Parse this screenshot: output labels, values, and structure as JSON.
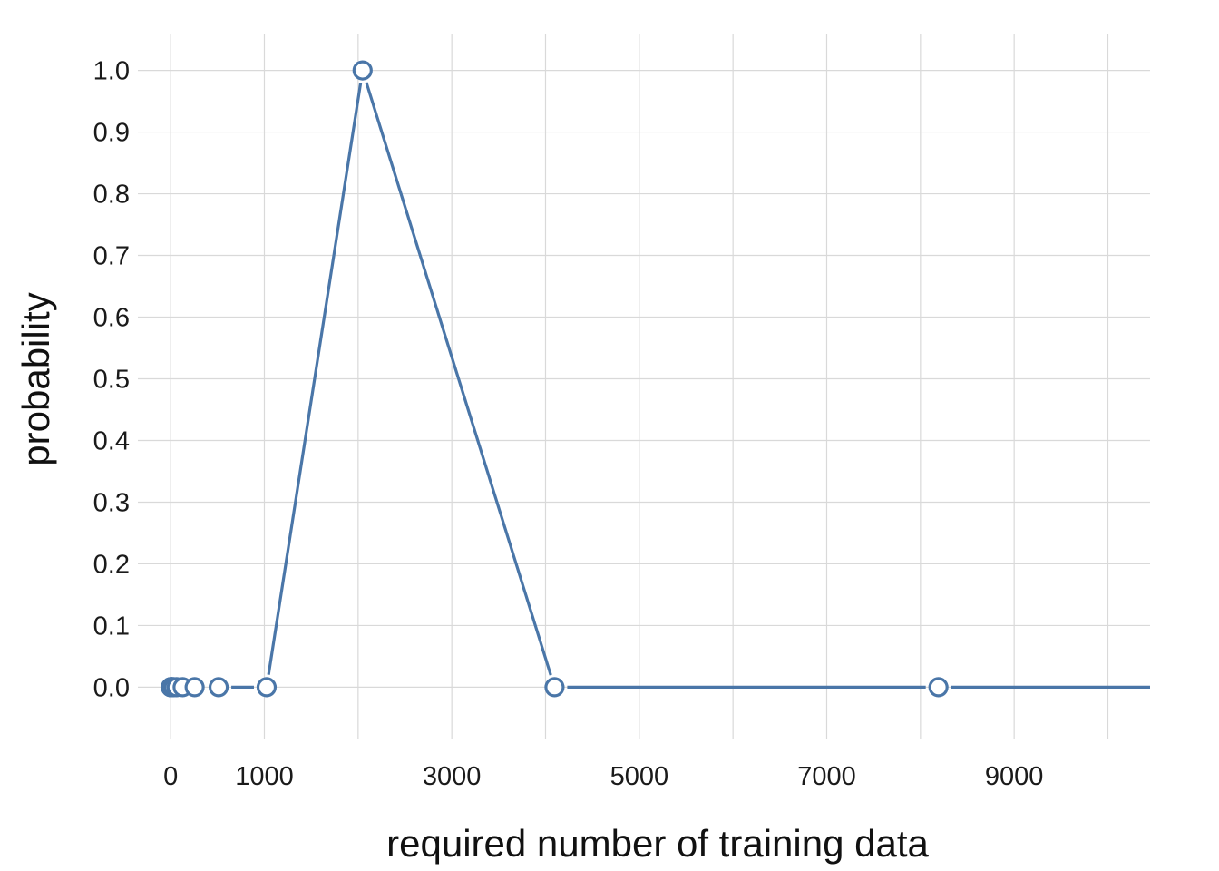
{
  "chart_data": {
    "type": "line",
    "xlabel": "required number of training data",
    "ylabel": "probability",
    "xlim": [
      -350,
      10450
    ],
    "ylim": [
      -0.07,
      1.07
    ],
    "x_ticks": [
      0,
      1000,
      3000,
      5000,
      7000,
      9000
    ],
    "x_tick_labels": [
      "0",
      "1000",
      "3000",
      "5000",
      "7000",
      "9000"
    ],
    "x_minor_grid": [
      2000,
      4000,
      6000,
      8000,
      10000
    ],
    "y_ticks": [
      0.0,
      0.1,
      0.2,
      0.3,
      0.4,
      0.5,
      0.6,
      0.7,
      0.8,
      0.9,
      1.0
    ],
    "y_tick_labels": [
      "0.0",
      "0.1",
      "0.2",
      "0.3",
      "0.4",
      "0.5",
      "0.6",
      "0.7",
      "0.8",
      "0.9",
      "1.0"
    ],
    "grid": true,
    "series": [
      {
        "color": "#4a76a8",
        "points": [
          {
            "x": 1,
            "y": 0.0
          },
          {
            "x": 2,
            "y": 0.0
          },
          {
            "x": 4,
            "y": 0.0
          },
          {
            "x": 8,
            "y": 0.0
          },
          {
            "x": 16,
            "y": 0.0
          },
          {
            "x": 32,
            "y": 0.0
          },
          {
            "x": 64,
            "y": 0.0
          },
          {
            "x": 128,
            "y": 0.0
          },
          {
            "x": 256,
            "y": 0.0
          },
          {
            "x": 512,
            "y": 0.0
          },
          {
            "x": 1024,
            "y": 0.0
          },
          {
            "x": 2048,
            "y": 1.0
          },
          {
            "x": 4096,
            "y": 0.0
          },
          {
            "x": 8192,
            "y": 0.0
          }
        ],
        "line_extends_to": {
          "x": 10450,
          "y": 0.0
        }
      }
    ]
  }
}
